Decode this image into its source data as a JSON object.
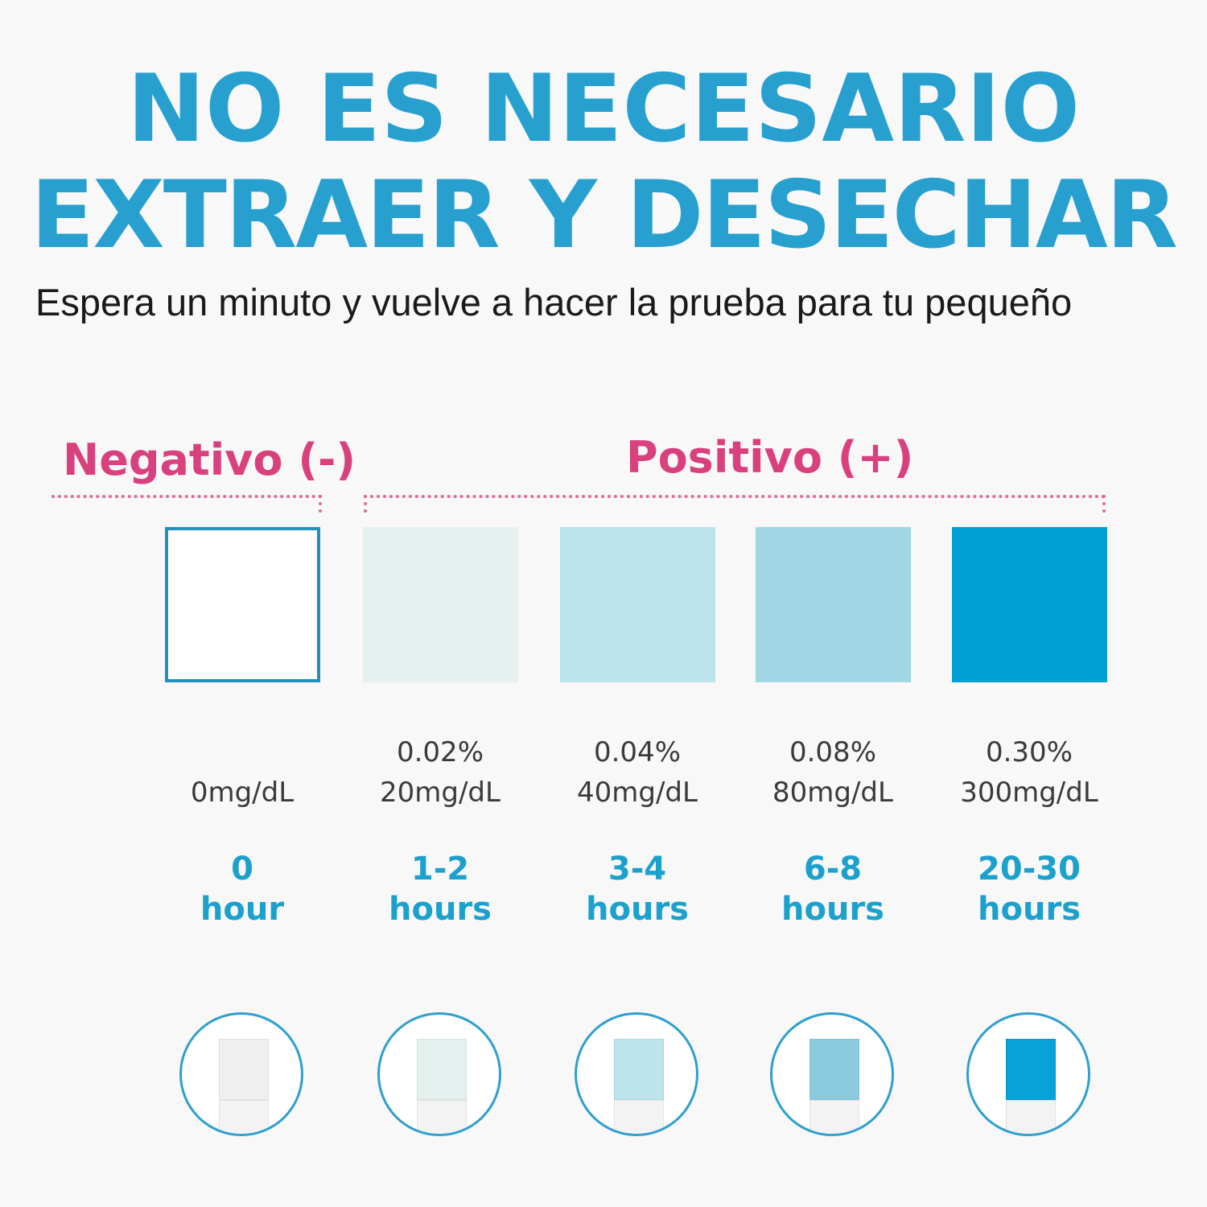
{
  "title": {
    "line1": "NO ES NECESARIO",
    "line2": "EXTRAER Y DESECHAR"
  },
  "subtitle": "Espera un minuto y vuelve a hacer la prueba para tu pequeño",
  "groups": {
    "negative": "Negativo (-)",
    "positive": "Positivo (+)"
  },
  "colors": {
    "title": "#27a0d0",
    "group_label": "#d8417e",
    "time_text": "#1ca0cc"
  },
  "levels": [
    {
      "percent": "",
      "concentration": "0mg/dL",
      "time_value": "0",
      "time_unit": "hour",
      "color": "#ffffff",
      "strip_color": "#efefef"
    },
    {
      "percent": "0.02%",
      "concentration": "20mg/dL",
      "time_value": "1-2",
      "time_unit": "hours",
      "color": "#e4f1ee",
      "strip_color": "#e3f0ee"
    },
    {
      "percent": "0.04%",
      "concentration": "40mg/dL",
      "time_value": "3-4",
      "time_unit": "hours",
      "color": "#bde3ec",
      "strip_color": "#bde3ec"
    },
    {
      "percent": "0.08%",
      "concentration": "80mg/dL",
      "time_value": "6-8",
      "time_unit": "hours",
      "color": "#a1d6e4",
      "strip_color": "#8ccbdd"
    },
    {
      "percent": "0.30%",
      "concentration": "300mg/dL",
      "time_value": "20-30",
      "time_unit": "hours",
      "color": "#00a0d2",
      "strip_color": "#0aa2d6"
    }
  ]
}
